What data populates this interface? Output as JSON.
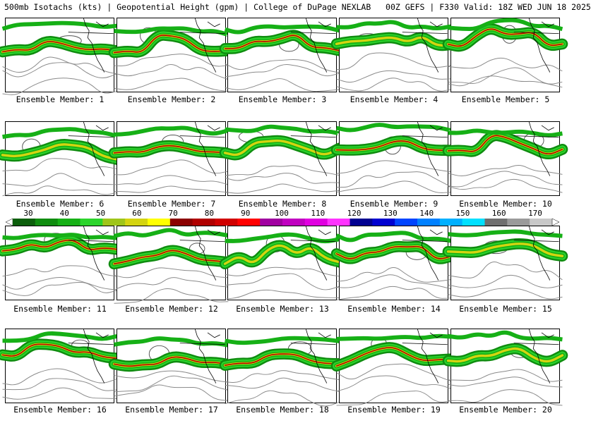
{
  "header": {
    "title": "500mb Isotachs (kts) | Geopotential Height (gpm) | College of DuPage NEXLAB   00Z GEFS | F330 Valid: 18Z WED JUN 18 2025"
  },
  "members": [
    {
      "label": "Ensemble Member: 1"
    },
    {
      "label": "Ensemble Member: 2"
    },
    {
      "label": "Ensemble Member: 3"
    },
    {
      "label": "Ensemble Member: 4"
    },
    {
      "label": "Ensemble Member: 5"
    },
    {
      "label": "Ensemble Member: 6"
    },
    {
      "label": "Ensemble Member: 7"
    },
    {
      "label": "Ensemble Member: 8"
    },
    {
      "label": "Ensemble Member: 9"
    },
    {
      "label": "Ensemble Member: 10"
    },
    {
      "label": "Ensemble Member: 11"
    },
    {
      "label": "Ensemble Member: 12"
    },
    {
      "label": "Ensemble Member: 13"
    },
    {
      "label": "Ensemble Member: 14"
    },
    {
      "label": "Ensemble Member: 15"
    },
    {
      "label": "Ensemble Member: 16"
    },
    {
      "label": "Ensemble Member: 17"
    },
    {
      "label": "Ensemble Member: 18"
    },
    {
      "label": "Ensemble Member: 19"
    },
    {
      "label": "Ensemble Member: 20"
    }
  ],
  "colorbar": {
    "labels": [
      "30",
      "40",
      "50",
      "60",
      "70",
      "80",
      "90",
      "100",
      "110",
      "120",
      "130",
      "140",
      "150",
      "160",
      "170"
    ],
    "colors": [
      "#0b5e0b",
      "#0f8c0f",
      "#16b016",
      "#2cd42c",
      "#9fc51a",
      "#d4d410",
      "#ffff00",
      "#8b0000",
      "#b00000",
      "#d00000",
      "#ff0000",
      "#a000a0",
      "#c000c0",
      "#e000e0",
      "#ff33ff",
      "#000090",
      "#0000d0",
      "#0044ff",
      "#0080ff",
      "#00b0ff",
      "#00e0ff",
      "#6f6f6f",
      "#9a9a9a",
      "#c8c8c8"
    ]
  }
}
